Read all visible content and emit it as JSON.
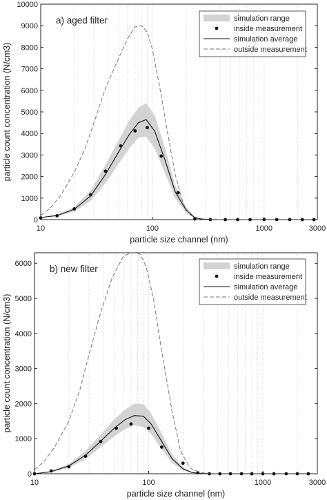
{
  "chart_data": [
    {
      "type": "line",
      "title": "a) aged filter",
      "xlabel": "particle size channel (nm)",
      "ylabel": "particle count concentration (N/cm3)",
      "xscale": "log",
      "xlim": [
        10,
        3000
      ],
      "ylim": [
        0,
        10000
      ],
      "xticks": [
        10,
        100,
        1000,
        3000
      ],
      "xtick_labels": [
        "10",
        "100",
        "1000",
        "3000"
      ],
      "yticks": [
        0,
        1000,
        2000,
        3000,
        4000,
        5000,
        6000,
        7000,
        8000,
        9000,
        10000
      ],
      "ytick_labels": [
        "0",
        "1000",
        "2000",
        "3000",
        "4000",
        "5000",
        "6000",
        "7000",
        "8000",
        "9000",
        "10000"
      ],
      "grid": "vertical-log",
      "legend_position": "top-right",
      "legend": [
        "simulation range",
        "inside measurement",
        "simulation average",
        "outside measurement"
      ],
      "series": [
        {
          "name": "simulation range",
          "style": "band",
          "x": [
            10,
            14,
            20,
            28,
            38,
            50,
            62,
            75,
            88,
            105,
            130,
            160,
            200,
            240,
            280,
            350,
            3000
          ],
          "lower": [
            80,
            150,
            380,
            870,
            1700,
            2600,
            3300,
            3800,
            3850,
            3300,
            2150,
            1000,
            330,
            60,
            10,
            0,
            0
          ],
          "upper": [
            110,
            240,
            580,
            1350,
            2550,
            3700,
            4600,
            5200,
            5400,
            4850,
            3300,
            1600,
            600,
            130,
            30,
            5,
            0
          ]
        },
        {
          "name": "inside measurement",
          "style": "markers",
          "x": [
            10,
            14,
            20,
            28,
            38,
            52,
            70,
            90,
            120,
            170,
            240,
            330,
            450,
            580,
            750,
            1000,
            1300,
            1700,
            2200,
            2800
          ],
          "y": [
            80,
            180,
            500,
            1150,
            2250,
            3420,
            4120,
            4270,
            2950,
            1250,
            30,
            0,
            0,
            0,
            0,
            0,
            0,
            0,
            0,
            0
          ]
        },
        {
          "name": "simulation average",
          "style": "solid",
          "x": [
            10,
            14,
            20,
            28,
            38,
            50,
            62,
            75,
            88,
            105,
            130,
            160,
            200,
            240,
            280,
            350,
            3000
          ],
          "y": [
            95,
            190,
            480,
            1100,
            2100,
            3150,
            3950,
            4500,
            4640,
            4100,
            2750,
            1300,
            450,
            90,
            20,
            0,
            0
          ]
        },
        {
          "name": "outside measurement",
          "style": "dashed",
          "x": [
            10,
            12,
            15,
            20,
            25,
            30,
            38,
            48,
            60,
            70,
            80,
            90,
            100,
            115,
            135,
            160,
            190,
            220,
            260,
            300,
            400,
            3000
          ],
          "y": [
            200,
            500,
            1100,
            2200,
            3300,
            4500,
            6100,
            7300,
            8400,
            8950,
            9000,
            8700,
            7900,
            6300,
            4200,
            2100,
            700,
            200,
            60,
            20,
            0,
            0
          ]
        }
      ]
    },
    {
      "type": "line",
      "title": "b) new filter",
      "xlabel": "particle size channel (nm)",
      "ylabel": "particle count concentration (N/cm3)",
      "xscale": "log",
      "xlim": [
        10,
        3000
      ],
      "ylim": [
        0,
        6300
      ],
      "xticks": [
        10,
        100,
        1000,
        3000
      ],
      "xtick_labels": [
        "10",
        "100",
        "1000",
        "3000"
      ],
      "yticks": [
        0,
        1000,
        2000,
        3000,
        4000,
        5000,
        6000
      ],
      "ytick_labels": [
        "0",
        "1000",
        "2000",
        "3000",
        "4000",
        "5000",
        "6000"
      ],
      "grid": "vertical-log",
      "legend_position": "top-right",
      "legend": [
        "simulation range",
        "inside measurement",
        "simulation average",
        "outside measurement"
      ],
      "series": [
        {
          "name": "simulation range",
          "style": "band",
          "x": [
            10,
            14,
            20,
            28,
            38,
            50,
            62,
            75,
            90,
            105,
            130,
            160,
            200,
            240,
            280,
            350,
            3000
          ],
          "lower": [
            0,
            40,
            170,
            420,
            760,
            1070,
            1270,
            1380,
            1330,
            1130,
            700,
            320,
            90,
            20,
            5,
            0,
            0
          ],
          "upper": [
            0,
            80,
            280,
            650,
            1120,
            1550,
            1830,
            2000,
            1990,
            1720,
            1150,
            560,
            190,
            50,
            15,
            0,
            0
          ]
        },
        {
          "name": "inside measurement",
          "style": "markers",
          "x": [
            10,
            14,
            20,
            28,
            38,
            52,
            70,
            100,
            130,
            200,
            270,
            340,
            420,
            520,
            650,
            800,
            1000,
            1250,
            1600,
            2000,
            2500
          ],
          "y": [
            0,
            80,
            200,
            500,
            920,
            1300,
            1420,
            1300,
            760,
            300,
            30,
            0,
            0,
            0,
            0,
            0,
            0,
            0,
            0,
            0,
            0
          ]
        },
        {
          "name": "simulation average",
          "style": "solid",
          "x": [
            10,
            14,
            20,
            28,
            38,
            50,
            62,
            75,
            90,
            105,
            130,
            160,
            200,
            240,
            280,
            350,
            3000
          ],
          "y": [
            0,
            60,
            225,
            530,
            930,
            1300,
            1540,
            1660,
            1640,
            1420,
            920,
            430,
            140,
            35,
            10,
            0,
            0
          ]
        },
        {
          "name": "outside measurement",
          "style": "dashed",
          "x": [
            10,
            12,
            15,
            20,
            25,
            30,
            38,
            48,
            60,
            70,
            78,
            85,
            95,
            110,
            130,
            160,
            190,
            230,
            280,
            350,
            3000
          ],
          "y": [
            120,
            330,
            760,
            1500,
            2400,
            3400,
            4600,
            5600,
            6200,
            6300,
            6300,
            6250,
            5900,
            5000,
            3500,
            1800,
            650,
            160,
            40,
            0,
            0
          ]
        }
      ]
    }
  ]
}
